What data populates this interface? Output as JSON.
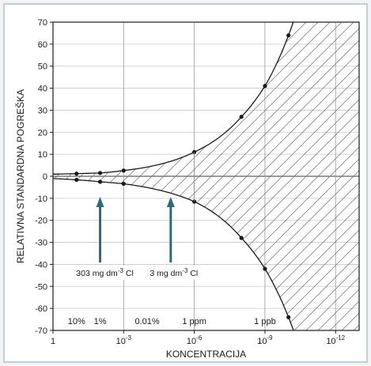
{
  "chart_data": {
    "type": "line",
    "xlabel": "KONCENTRACIJA",
    "ylabel": "RELATIVNA STANDARDNA POGREŠKA",
    "x_scale": "log (concentration, decreasing left to right)",
    "xlim": [
      1,
      1e-13
    ],
    "ylim": [
      -70,
      70
    ],
    "y_ticks": [
      70,
      60,
      50,
      40,
      30,
      20,
      10,
      0,
      -10,
      -20,
      -30,
      -40,
      -50,
      -60,
      -70
    ],
    "x_ticks": [
      {
        "x": 1,
        "label": "1",
        "exp": ""
      },
      {
        "x": 0.001,
        "label": "10",
        "exp": "-3"
      },
      {
        "x": 1e-06,
        "label": "10",
        "exp": "-6"
      },
      {
        "x": 1e-09,
        "label": "10",
        "exp": "-9"
      },
      {
        "x": 1e-12,
        "label": "10",
        "exp": "-12"
      }
    ],
    "grid": true,
    "hatched_region": "between the upper and lower curves",
    "series": [
      {
        "role": "upper",
        "points": [
          {
            "x": 0.1,
            "y": 1.2
          },
          {
            "x": 0.01,
            "y": 1.5
          },
          {
            "x": 0.001,
            "y": 2.6
          },
          {
            "x": 1e-06,
            "y": 11
          },
          {
            "x": 1e-08,
            "y": 27
          },
          {
            "x": 1e-09,
            "y": 41
          },
          {
            "x": 1e-10,
            "y": 64
          }
        ]
      },
      {
        "role": "lower",
        "points": [
          {
            "x": 0.1,
            "y": -1.6
          },
          {
            "x": 0.01,
            "y": -2.5
          },
          {
            "x": 0.001,
            "y": -3.4
          },
          {
            "x": 1e-06,
            "y": -11.5
          },
          {
            "x": 1e-08,
            "y": -28
          },
          {
            "x": 1e-09,
            "y": -42
          },
          {
            "x": 1e-10,
            "y": -64
          }
        ]
      }
    ],
    "concentration_labels": [
      {
        "x": 0.1,
        "text": "10%"
      },
      {
        "x": 0.01,
        "text": "1%"
      },
      {
        "x": 0.0001,
        "text": "0.01%"
      },
      {
        "x": 1e-06,
        "text": "1 ppm"
      },
      {
        "x": 1e-09,
        "text": "1 ppb"
      }
    ],
    "annotations": [
      {
        "x": 0.01,
        "text_main": "303 mg dm",
        "text_sup": "-3",
        "text_tail": " Cl"
      },
      {
        "x": 1e-05,
        "text_main": "3 mg dm",
        "text_sup": "-3",
        "text_tail": " Cl"
      }
    ],
    "colors": {
      "curve": "#1a1a1a",
      "arrow": "#2d6b77",
      "annotation_bg": "#ffffff",
      "frame_border": "#a8c4cc"
    }
  }
}
